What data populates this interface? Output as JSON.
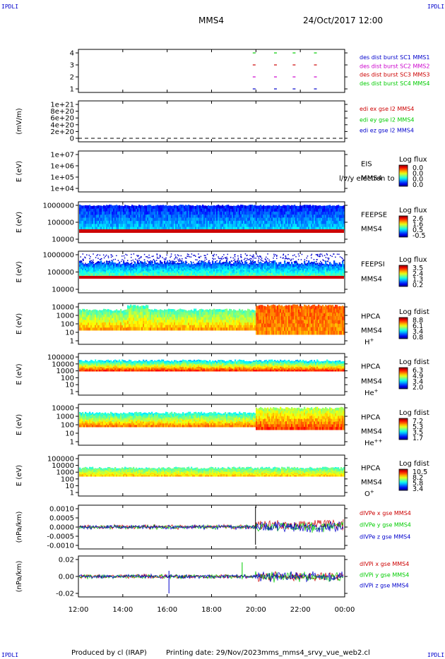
{
  "header": {
    "corner_label": "IPDLI",
    "spacecraft": "MMS4",
    "datetime": "24/Oct/2017 12:00"
  },
  "footer": {
    "produced_by": "Produced by cl (IRAP)",
    "printing_date": "Printing date: 29/Nov/2023",
    "file": "mms_mms4_srvy_vue_web2.cl"
  },
  "colors": {
    "red": "#cc0000",
    "green": "#00cc00",
    "blue": "#0000cc",
    "magenta": "#cc00cc"
  },
  "chart_data": {
    "type": "heatmap",
    "x_ticks": [
      "12:00",
      "14:00",
      "16:00",
      "18:00",
      "20:00",
      "22:00",
      "00:00"
    ],
    "panels": [
      {
        "id": "des-dist-burst",
        "type": "scatter",
        "y_ticks": [
          "4",
          "3",
          "2",
          "1"
        ],
        "ylabel": "",
        "legend": [
          {
            "label": "des dist burst SC1 MMS1",
            "color": "#0000cc"
          },
          {
            "label": "des dist burst SC2 MMS2",
            "color": "#cc00cc"
          },
          {
            "label": "des dist burst SC3 MMS3",
            "color": "#cc0000"
          },
          {
            "label": "des dist burst SC4 MMS4",
            "color": "#00cc00"
          }
        ]
      },
      {
        "id": "edi-e",
        "type": "line",
        "y_ticks": [
          "1e+21",
          "8e+20",
          "6e+20",
          "4e+20",
          "2e+20",
          "0"
        ],
        "ylabel": "(mV/m)",
        "legend": [
          {
            "label": "edi ex gse l2 MMS4",
            "color": "#cc0000"
          },
          {
            "label": "edi ey gse l2 MMS4",
            "color": "#00cc00"
          },
          {
            "label": "edi ez gse l2 MMS4",
            "color": "#0000cc"
          }
        ]
      },
      {
        "id": "eis",
        "type": "heatmap",
        "y_ticks": [
          "1e+07",
          "1e+06",
          "1e+05",
          "1e+04"
        ],
        "ylabel": "E (eV)",
        "labels": [
          "EIS",
          "MMS4"
        ],
        "overlay_label": "l/v/y electron to",
        "colorbar": {
          "title": "Log flux",
          "ticks": [
            "0.0",
            "0.0",
            "0.0",
            "0.0"
          ]
        }
      },
      {
        "id": "feepse",
        "type": "heatmap",
        "y_ticks": [
          "1000000",
          "100000",
          "10000"
        ],
        "ylabel": "E (eV)",
        "labels": [
          "FEEPSE",
          "MMS4"
        ],
        "colorbar": {
          "title": "Log flux",
          "ticks": [
            "2.6",
            "1.6",
            "0.5",
            "-0.5"
          ]
        }
      },
      {
        "id": "feepsi",
        "type": "heatmap",
        "y_ticks": [
          "1000000",
          "100000",
          "10000"
        ],
        "ylabel": "E (eV)",
        "labels": [
          "FEEPSI",
          "MMS4"
        ],
        "colorbar": {
          "title": "Log flux",
          "ticks": [
            "3.5",
            "2.4",
            "1.3",
            "0.2"
          ]
        }
      },
      {
        "id": "hpca-h",
        "type": "heatmap",
        "y_ticks": [
          "10000",
          "1000",
          "100",
          "10",
          "1"
        ],
        "ylabel": "E (eV)",
        "labels": [
          "HPCA",
          "MMS4",
          "H+"
        ],
        "colorbar": {
          "title": "Log fdist",
          "ticks": [
            "8.8",
            "6.1",
            "3.4",
            "0.8"
          ]
        }
      },
      {
        "id": "hpca-he",
        "type": "heatmap",
        "y_ticks": [
          "100000",
          "10000",
          "1000",
          "100",
          "10",
          "1"
        ],
        "ylabel": "E (eV)",
        "labels": [
          "HPCA",
          "MMS4",
          "He+"
        ],
        "colorbar": {
          "title": "Log fdist",
          "ticks": [
            "6.3",
            "4.9",
            "3.4",
            "2.0"
          ]
        }
      },
      {
        "id": "hpca-he2",
        "type": "heatmap",
        "y_ticks": [
          "10000",
          "1000",
          "100",
          "10",
          "1"
        ],
        "ylabel": "E (eV)",
        "labels": [
          "HPCA",
          "MMS4",
          "He++"
        ],
        "colorbar": {
          "title": "Log fdist",
          "ticks": [
            "7.2",
            "5.3",
            "3.5",
            "1.7"
          ]
        }
      },
      {
        "id": "hpca-o",
        "type": "heatmap",
        "y_ticks": [
          "100000",
          "10000",
          "1000",
          "100",
          "10",
          "1"
        ],
        "ylabel": "E (eV)",
        "labels": [
          "HPCA",
          "MMS4",
          "O+"
        ],
        "colorbar": {
          "title": "Log fdist",
          "ticks": [
            "10.5",
            "8.2",
            "5.8",
            "3.4"
          ]
        }
      },
      {
        "id": "divpe",
        "type": "line",
        "y_ticks": [
          "0.0010",
          "0.0005",
          "0.0000",
          "-0.0005",
          "-0.0010"
        ],
        "ylabel": "(nPa/km)",
        "legend": [
          {
            "label": "dIVPe x gse MMS4",
            "color": "#cc0000"
          },
          {
            "label": "dIVPe y gse MMS4",
            "color": "#00cc00"
          },
          {
            "label": "dIVPe z gse MMS4",
            "color": "#0000cc"
          }
        ]
      },
      {
        "id": "divpi",
        "type": "line",
        "y_ticks": [
          "0.02",
          "0.00",
          "-0.02"
        ],
        "ylabel": "(nPa/km)",
        "legend": [
          {
            "label": "dIVPi x gse MMS4",
            "color": "#cc0000"
          },
          {
            "label": "dIVPi y gse MMS4",
            "color": "#00cc00"
          },
          {
            "label": "dIVPi z gse MMS4",
            "color": "#0000cc"
          }
        ]
      }
    ]
  }
}
